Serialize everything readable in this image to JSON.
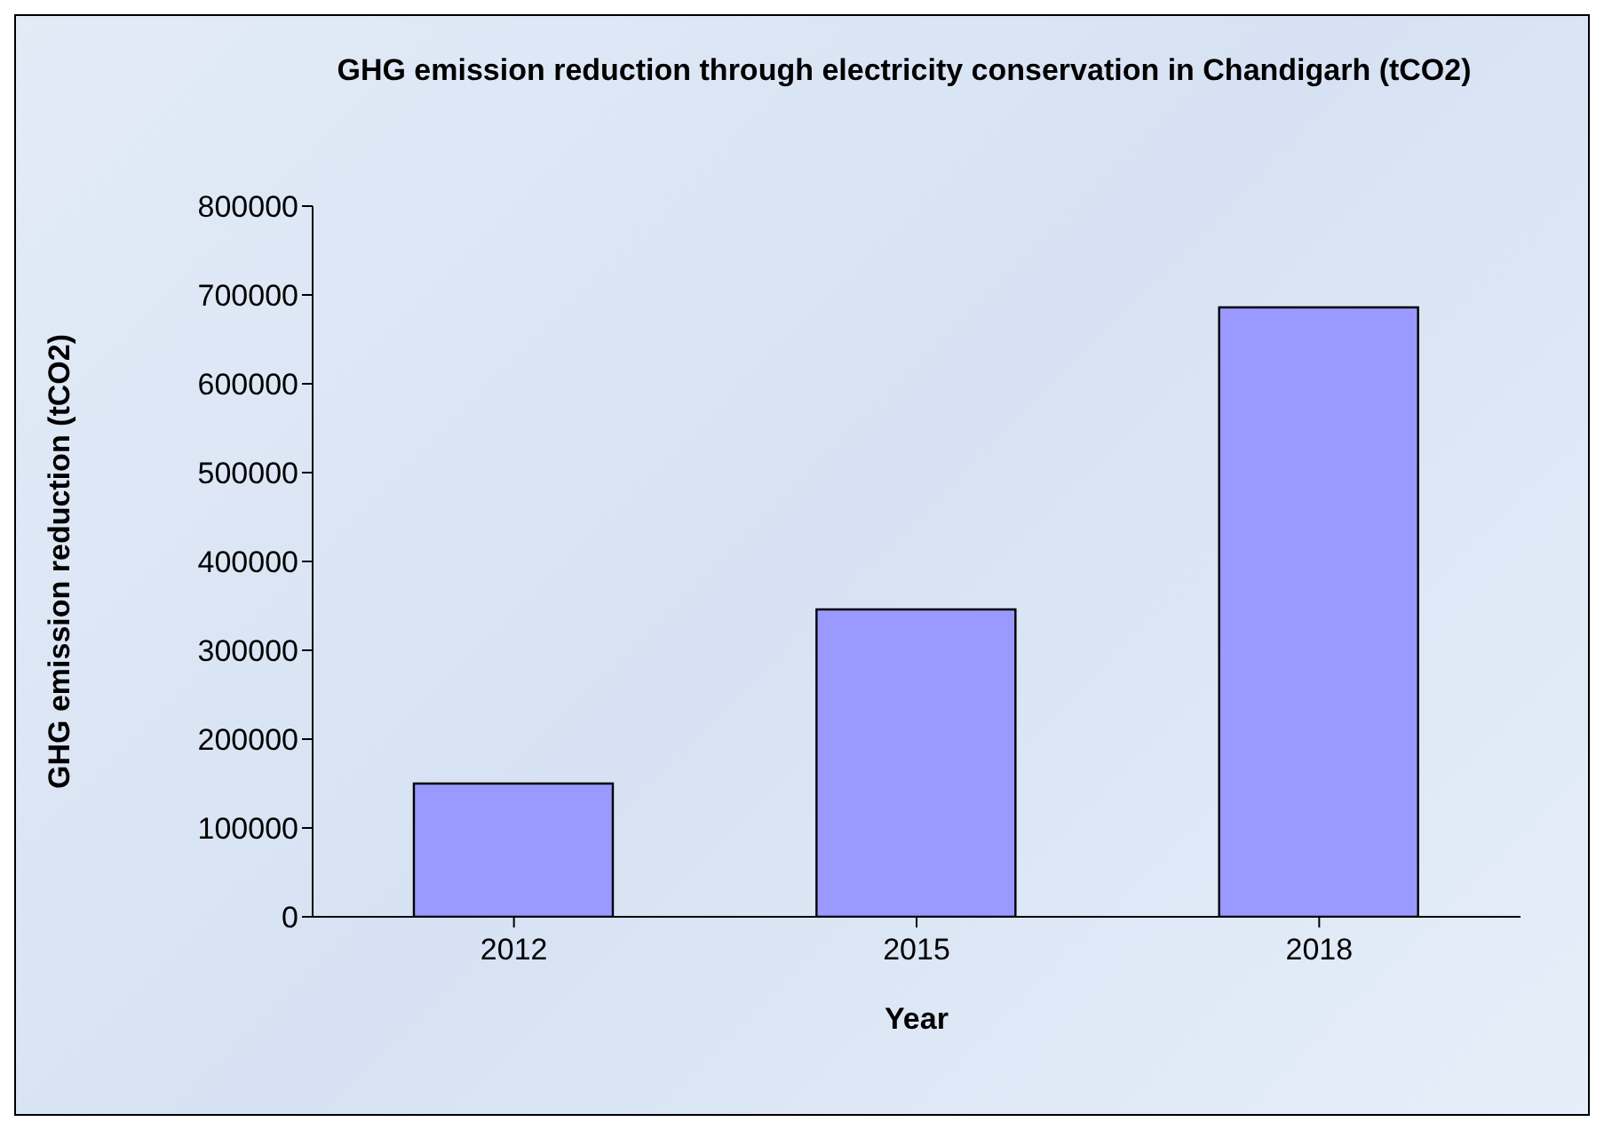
{
  "chart_data": {
    "type": "bar",
    "title": "GHG emission reduction through electricity conservation in Chandigarh (tCO2)",
    "xlabel": "Year",
    "ylabel": "GHG emission reduction (tCO2)",
    "categories": [
      "2012",
      "2015",
      "2018"
    ],
    "values": [
      150000,
      346000,
      686000
    ],
    "color": "#9999ff",
    "ylim": [
      0,
      800000
    ],
    "yticks": [
      0,
      100000,
      200000,
      300000,
      400000,
      500000,
      600000,
      700000,
      800000
    ],
    "grid": false,
    "legend": false
  }
}
